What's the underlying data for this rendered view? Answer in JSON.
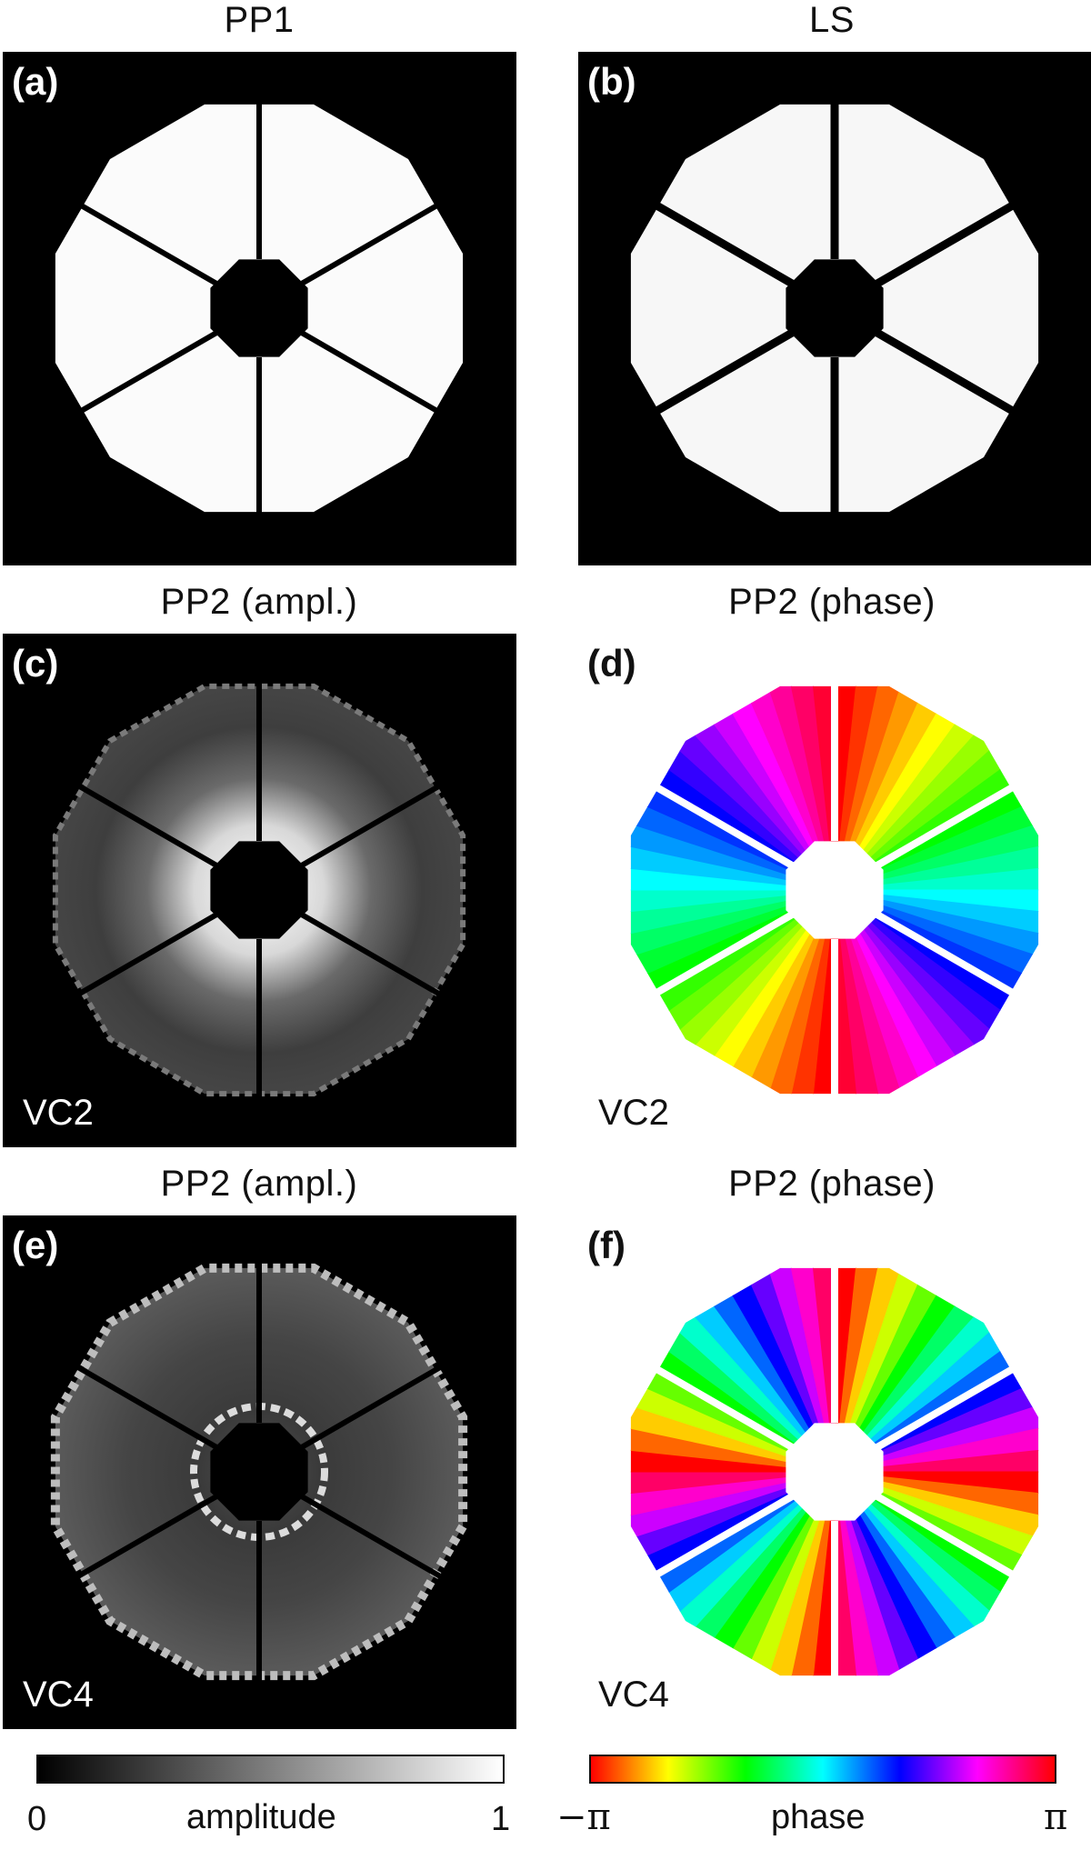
{
  "panels": [
    {
      "id": "a",
      "letter": "(a)",
      "title": "PP1",
      "corner_label": "",
      "kind": "pupil",
      "background": "#000000",
      "foreground": "#ffffff"
    },
    {
      "id": "b",
      "letter": "(b)",
      "title": "LS",
      "corner_label": "",
      "kind": "lyot-stop",
      "background": "#000000",
      "foreground": "#ffffff"
    },
    {
      "id": "c",
      "letter": "(c)",
      "title": "PP2 (ampl.)",
      "corner_label": "VC2",
      "kind": "amplitude",
      "background": "#000000",
      "foreground": "#ffffff"
    },
    {
      "id": "d",
      "letter": "(d)",
      "title": "PP2 (phase)",
      "corner_label": "VC2",
      "kind": "phase",
      "background": "#ffffff",
      "foreground": "#111111"
    },
    {
      "id": "e",
      "letter": "(e)",
      "title": "PP2 (ampl.)",
      "corner_label": "VC4",
      "kind": "amplitude",
      "background": "#000000",
      "foreground": "#ffffff"
    },
    {
      "id": "f",
      "letter": "(f)",
      "title": "PP2 (phase)",
      "corner_label": "VC4",
      "kind": "phase",
      "background": "#ffffff",
      "foreground": "#111111"
    }
  ],
  "colorbars": {
    "amplitude": {
      "label": "amplitude",
      "min_label": "0",
      "max_label": "1",
      "min": 0,
      "max": 1,
      "colors": [
        "#000000",
        "#ffffff"
      ]
    },
    "phase": {
      "label": "phase",
      "min_label": "−π",
      "max_label": "π",
      "colors": [
        "#ff0000",
        "#ffff00",
        "#00ff00",
        "#00ffff",
        "#0000ff",
        "#ff00ff",
        "#ff0000"
      ]
    }
  }
}
